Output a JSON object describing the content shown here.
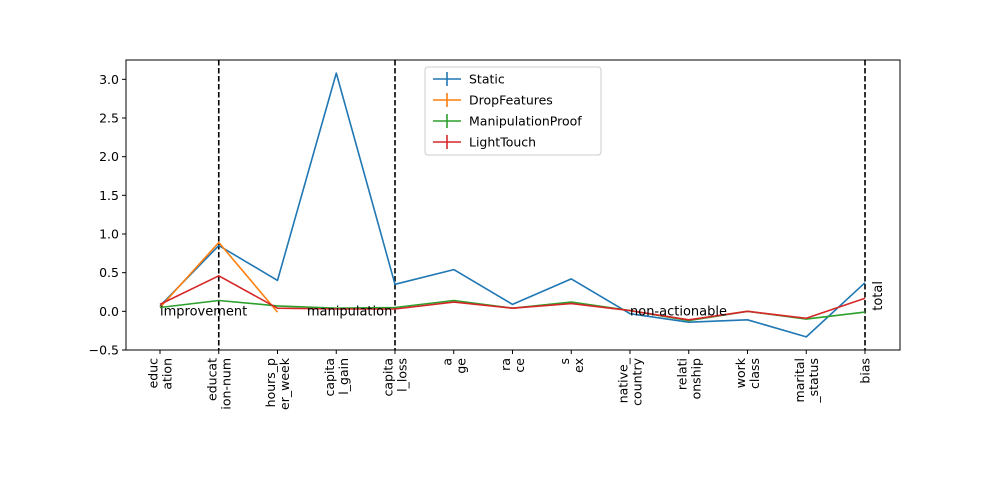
{
  "chart_data": {
    "type": "line",
    "categories": [
      [
        "educ",
        "ation"
      ],
      [
        "educat",
        "ion-num"
      ],
      [
        "hours_p",
        "er_week"
      ],
      [
        "capita",
        "l_gain"
      ],
      [
        "capita",
        "l_loss"
      ],
      [
        "a",
        "ge"
      ],
      [
        "ra",
        "ce"
      ],
      [
        "s",
        "ex"
      ],
      [
        "native_",
        "country"
      ],
      [
        "relati",
        "onship"
      ],
      [
        "work",
        "class"
      ],
      [
        "marital",
        "_status"
      ],
      [
        "bias"
      ]
    ],
    "series": [
      {
        "name": "Static",
        "color": "#1f77b4",
        "values": [
          0.07,
          0.85,
          0.4,
          3.08,
          0.35,
          0.54,
          0.09,
          0.42,
          -0.03,
          -0.14,
          -0.11,
          -0.33,
          0.37
        ]
      },
      {
        "name": "DropFeatures",
        "color": "#ff7f0e",
        "values": [
          0.05,
          0.89,
          -0.01,
          null,
          null,
          null,
          null,
          null,
          null,
          null,
          null,
          null,
          null
        ]
      },
      {
        "name": "ManipulationProof",
        "color": "#2ca02c",
        "values": [
          0.05,
          0.14,
          0.07,
          0.04,
          0.05,
          0.14,
          0.04,
          0.12,
          0.01,
          -0.12,
          0.0,
          -0.1,
          -0.01
        ]
      },
      {
        "name": "LightTouch",
        "color": "#d62728",
        "values": [
          0.09,
          0.46,
          0.04,
          0.03,
          0.03,
          0.12,
          0.04,
          0.1,
          0.01,
          -0.11,
          0.0,
          -0.09,
          0.17
        ]
      }
    ],
    "yticks": [
      "−0.5",
      "0.0",
      "0.5",
      "1.0",
      "1.5",
      "2.0",
      "2.5",
      "3.0"
    ],
    "ylim": [
      -0.5,
      3.25
    ],
    "separators_after_index": [
      1,
      4,
      12
    ],
    "annotations": [
      {
        "text": "improvement",
        "x_index": 0,
        "y": 0.0
      },
      {
        "text": "manipulation",
        "x_index": 2.5,
        "y": 0.0
      },
      {
        "text": "non-actionable",
        "x_index": 8,
        "y": 0.0
      },
      {
        "text": "total",
        "x_index": 12,
        "y": 0.2,
        "rotated": true
      }
    ],
    "legend_position": "top-center",
    "grid": false
  }
}
